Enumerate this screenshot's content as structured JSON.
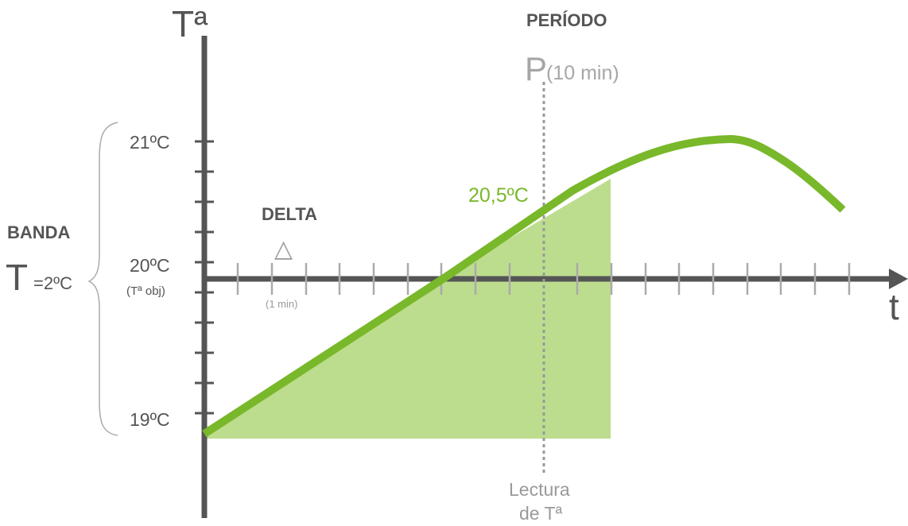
{
  "y_axis_label": "Tª",
  "x_axis_label": "t",
  "period": {
    "heading": "PERÍODO",
    "letter": "P",
    "value": "(10 min)"
  },
  "delta": {
    "heading": "DELTA",
    "symbol": "△",
    "unit_label": "(1 min)"
  },
  "banda": {
    "heading": "BANDA",
    "letter": "T",
    "value": "=2ºC"
  },
  "y_ticks": {
    "t21": "21ºC",
    "t20": "20ºC",
    "t20_note": "(Tª obj)",
    "t19": "19ºC"
  },
  "reading": {
    "value_label": "20,5ºC",
    "caption_line1": "Lectura",
    "caption_line2": "de Tª"
  },
  "colors": {
    "axis": "#555555",
    "tick": "#aaaaaa",
    "curve": "#79b82a",
    "fill": "#bcdd8e",
    "muted_text": "#9a9a9a",
    "label_text": "#555555"
  }
}
